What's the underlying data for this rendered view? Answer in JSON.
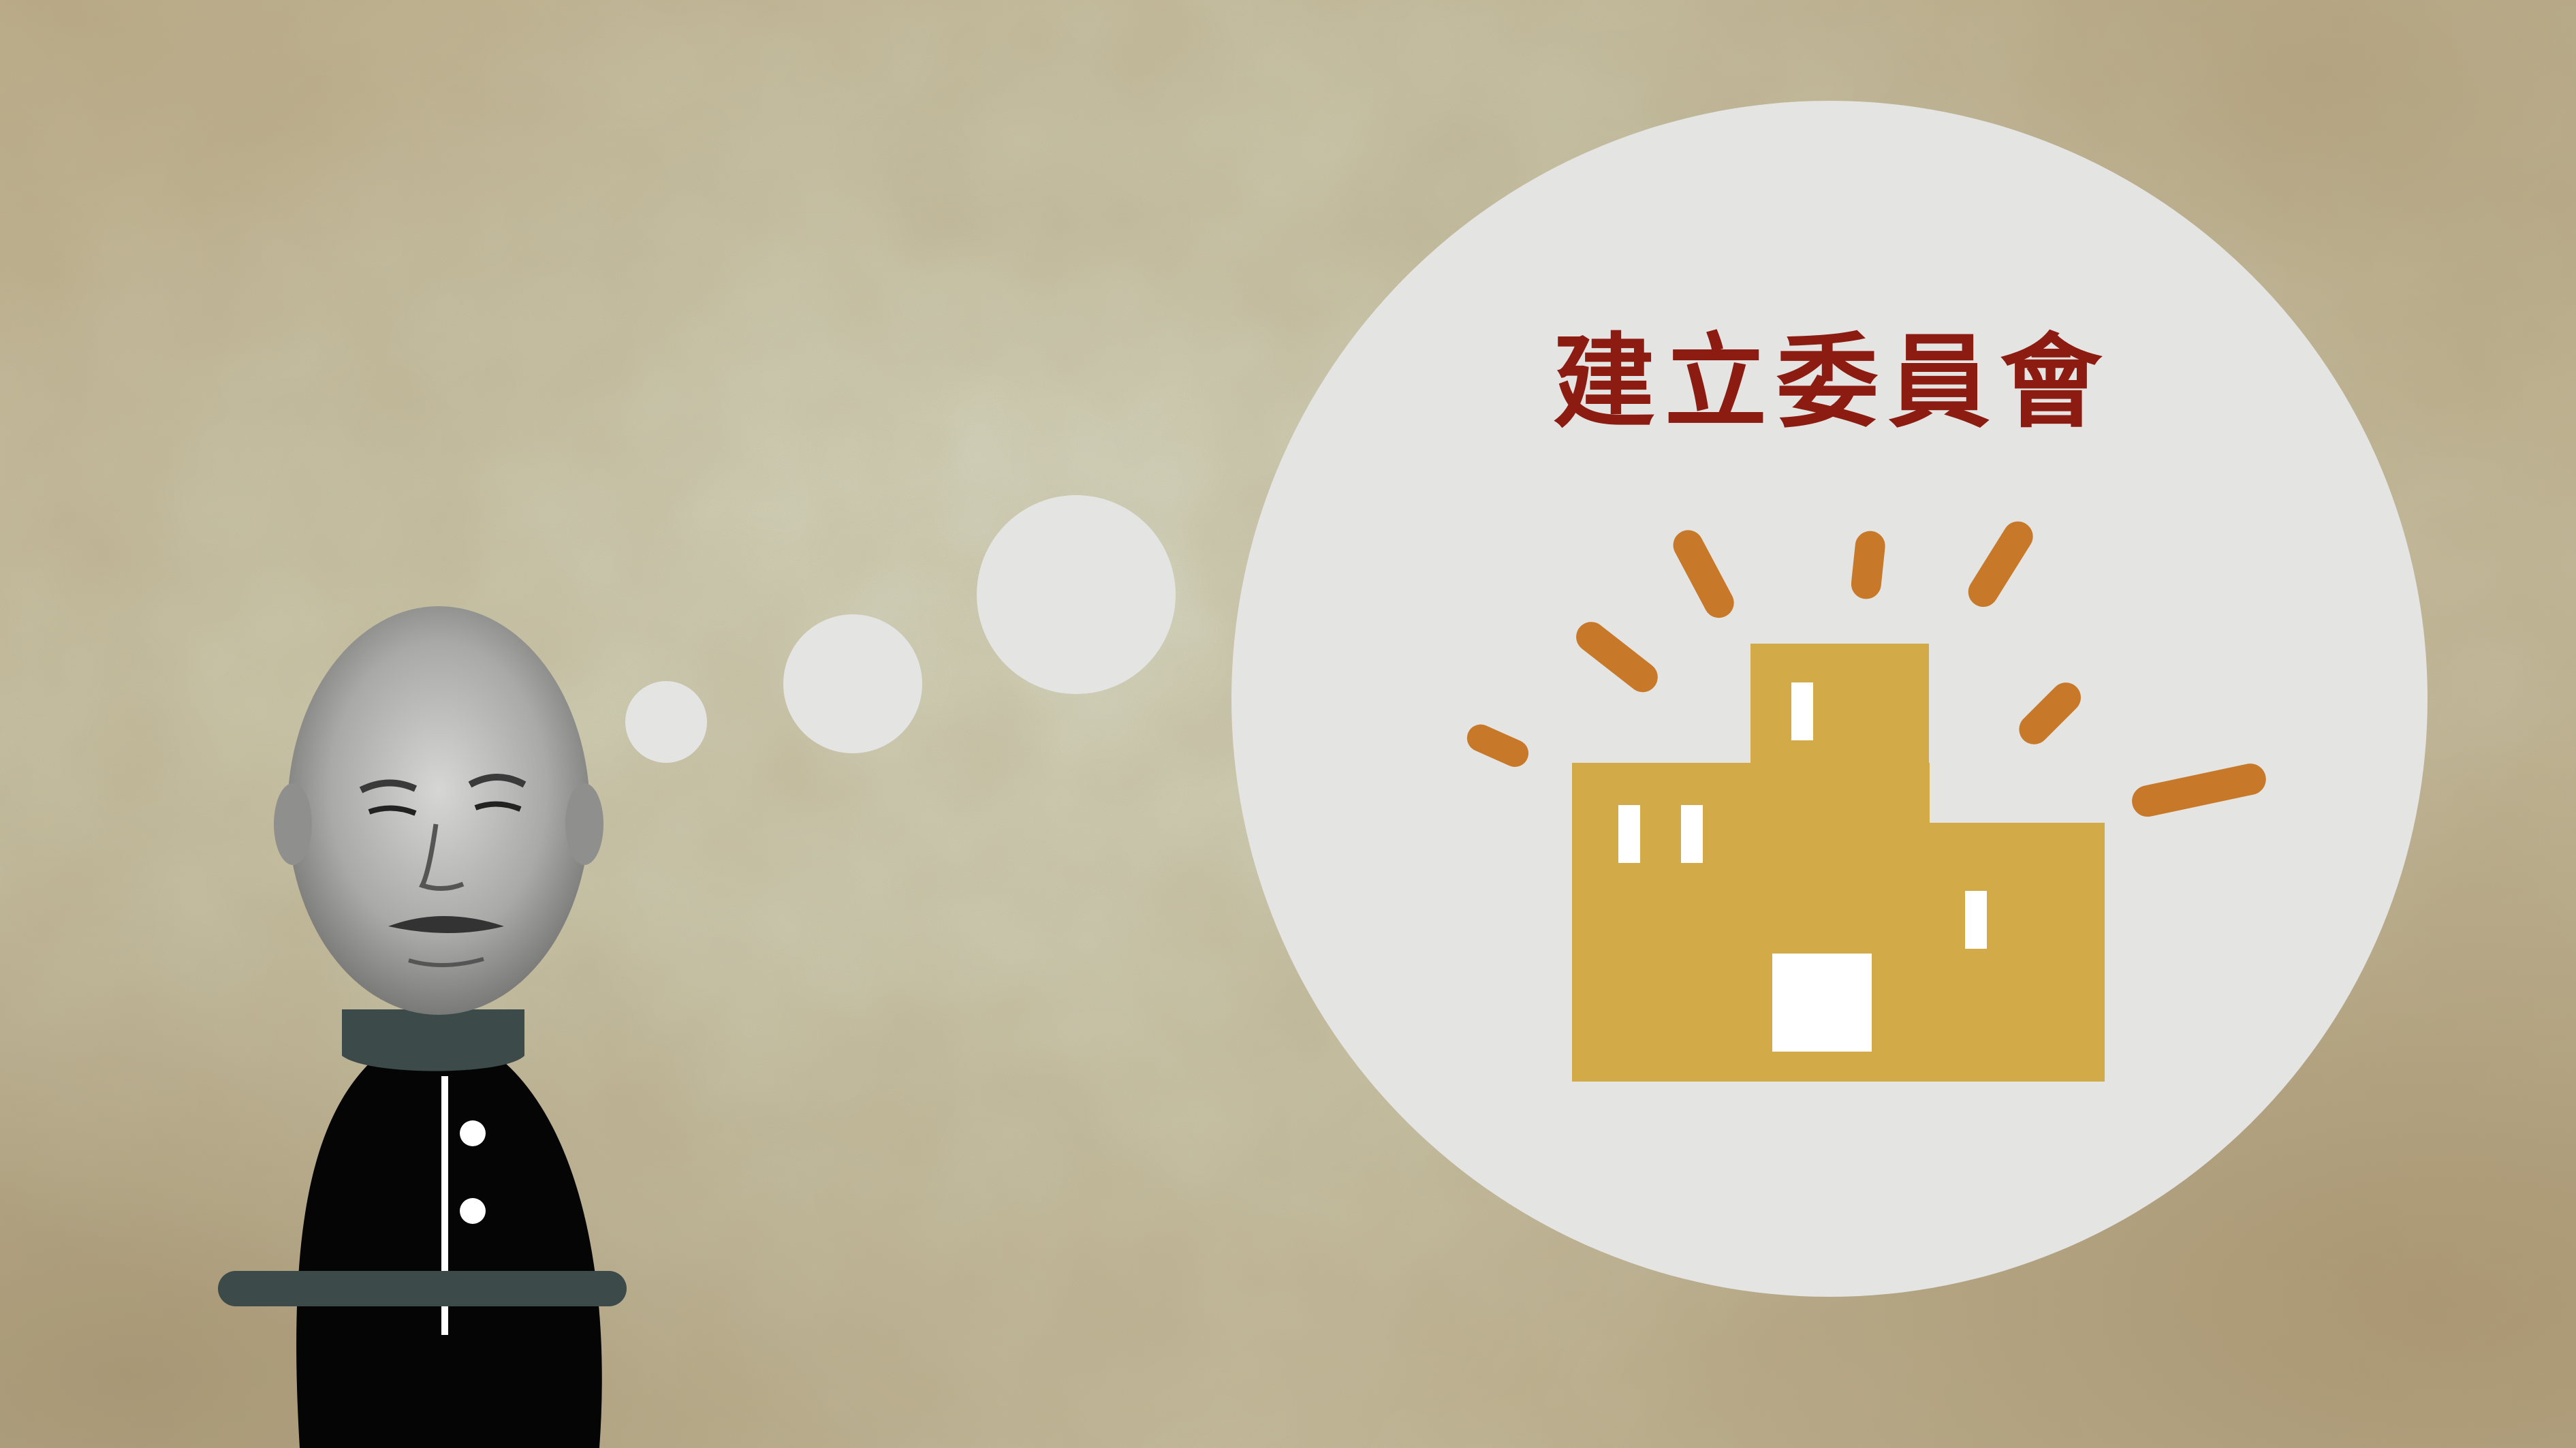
{
  "thought": {
    "title": "建立委員會",
    "icon": "committee-building-icon"
  },
  "colors": {
    "title": "#8c1b12",
    "building": "#d2aa48",
    "rays": "#c77929",
    "bubble": "#e4e4e3",
    "robe": "#050505",
    "collar": "#3c4a4a"
  }
}
